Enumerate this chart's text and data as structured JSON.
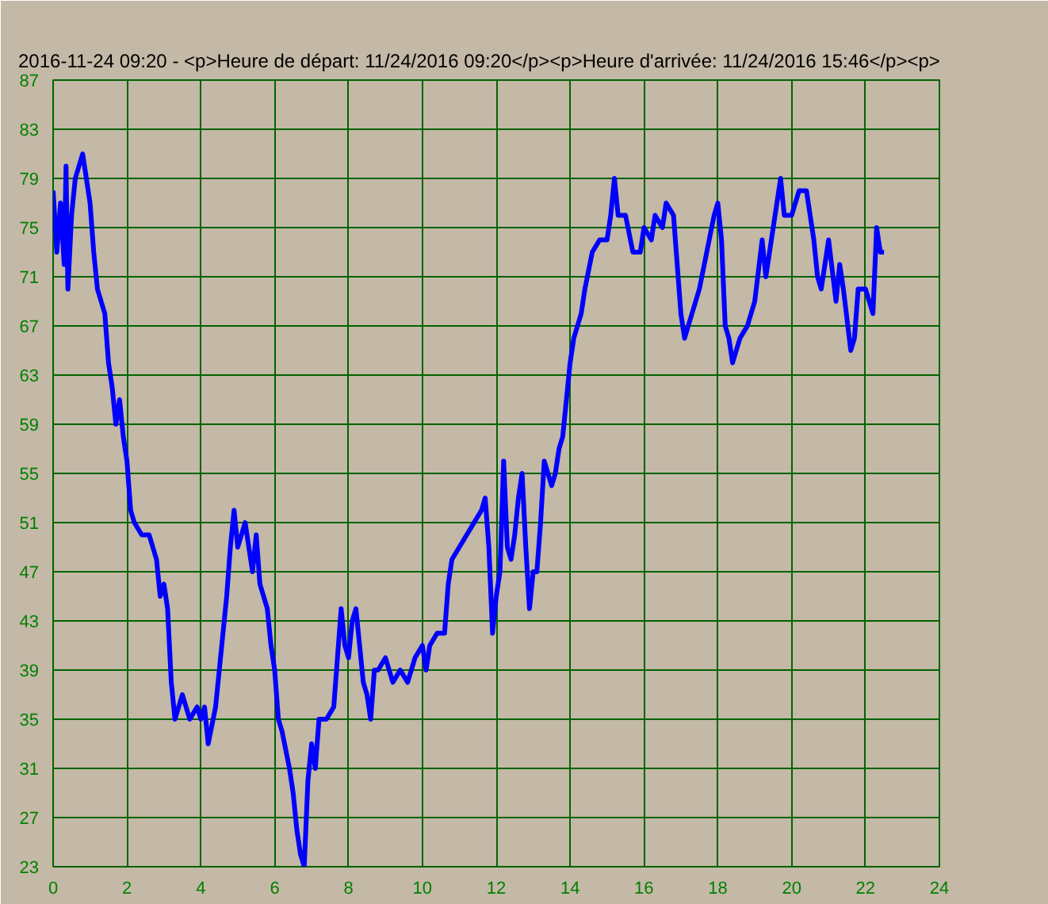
{
  "chart_data": {
    "type": "line",
    "title": "2016-11-24 09:20 - <p>Heure de départ: 11/24/2016 09:20</p><p>Heure d'arrivée: 11/24/2016 15:46</p><p>",
    "xlim": [
      0,
      24
    ],
    "xticks": [
      0,
      2,
      4,
      6,
      8,
      10,
      12,
      14,
      16,
      18,
      20,
      22,
      24
    ],
    "ylim": [
      23,
      87
    ],
    "yticks": [
      23,
      27,
      31,
      35,
      39,
      43,
      47,
      51,
      55,
      59,
      63,
      67,
      71,
      75,
      79,
      83,
      87
    ],
    "grid": true,
    "marker": "none",
    "line_style": "solid",
    "series": [
      {
        "color": "#0000ff",
        "x": [
          0,
          0.1,
          0.2,
          0.3,
          0.35,
          0.4,
          0.5,
          0.6,
          0.7,
          0.8,
          0.9,
          1.0,
          1.1,
          1.2,
          1.4,
          1.5,
          1.6,
          1.7,
          1.8,
          1.9,
          2.0,
          2.1,
          2.2,
          2.4,
          2.6,
          2.8,
          2.9,
          3.0,
          3.1,
          3.2,
          3.3,
          3.5,
          3.7,
          3.9,
          4.0,
          4.1,
          4.2,
          4.4,
          4.6,
          4.7,
          4.8,
          4.9,
          5.0,
          5.2,
          5.4,
          5.5,
          5.6,
          5.8,
          5.9,
          6.0,
          6.1,
          6.2,
          6.4,
          6.5,
          6.6,
          6.7,
          6.8,
          6.9,
          7.0,
          7.1,
          7.2,
          7.4,
          7.6,
          7.7,
          7.8,
          7.9,
          8.0,
          8.1,
          8.2,
          8.4,
          8.5,
          8.6,
          8.7,
          8.8,
          9.0,
          9.2,
          9.4,
          9.6,
          9.8,
          10.0,
          10.1,
          10.2,
          10.4,
          10.6,
          10.7,
          10.8,
          11.0,
          11.2,
          11.4,
          11.6,
          11.7,
          11.8,
          11.9,
          12.0,
          12.1,
          12.2,
          12.3,
          12.4,
          12.5,
          12.6,
          12.7,
          12.8,
          12.9,
          13.0,
          13.1,
          13.2,
          13.3,
          13.5,
          13.6,
          13.7,
          13.8,
          14.0,
          14.1,
          14.3,
          14.4,
          14.6,
          14.8,
          15.0,
          15.1,
          15.2,
          15.3,
          15.5,
          15.7,
          15.9,
          16.0,
          16.2,
          16.3,
          16.5,
          16.6,
          16.8,
          16.9,
          17.0,
          17.1,
          17.3,
          17.5,
          17.7,
          17.9,
          18.0,
          18.1,
          18.2,
          18.3,
          18.4,
          18.6,
          18.8,
          19.0,
          19.2,
          19.3,
          19.5,
          19.6,
          19.7,
          19.8,
          20.0,
          20.2,
          20.4,
          20.5,
          20.6,
          20.7,
          20.8,
          21.0,
          21.2,
          21.3,
          21.4,
          21.6,
          21.7,
          21.8,
          22.0,
          22.2,
          22.3,
          22.4,
          22.5
        ],
        "values": [
          78,
          73,
          77,
          72,
          80,
          70,
          76,
          79,
          80,
          81,
          79,
          77,
          73,
          70,
          68,
          64,
          62,
          59,
          61,
          58,
          56,
          52,
          51,
          50,
          50,
          48,
          45,
          46,
          44,
          38,
          35,
          37,
          35,
          36,
          35,
          36,
          33,
          36,
          42,
          45,
          49,
          52,
          49,
          51,
          47,
          50,
          46,
          44,
          41,
          39,
          35,
          34,
          31,
          29,
          26,
          24,
          23,
          30,
          33,
          31,
          35,
          35,
          36,
          40,
          44,
          41,
          40,
          43,
          44,
          38,
          37,
          35,
          39,
          39,
          40,
          38,
          39,
          38,
          40,
          41,
          39,
          41,
          42,
          42,
          46,
          48,
          49,
          50,
          51,
          52,
          53,
          49,
          42,
          45,
          47,
          56,
          49,
          48,
          50,
          53,
          55,
          49,
          44,
          47,
          47,
          51,
          56,
          54,
          55,
          57,
          58,
          64,
          66,
          68,
          70,
          73,
          74,
          74,
          76,
          79,
          76,
          76,
          73,
          73,
          75,
          74,
          76,
          75,
          77,
          76,
          72,
          68,
          66,
          68,
          70,
          73,
          76,
          77,
          74,
          67,
          66,
          64,
          66,
          67,
          69,
          74,
          71,
          75,
          77,
          79,
          76,
          76,
          78,
          78,
          76,
          74,
          71,
          70,
          74,
          69,
          72,
          70,
          65,
          66,
          70,
          70,
          68,
          75,
          73,
          73
        ]
      }
    ]
  }
}
